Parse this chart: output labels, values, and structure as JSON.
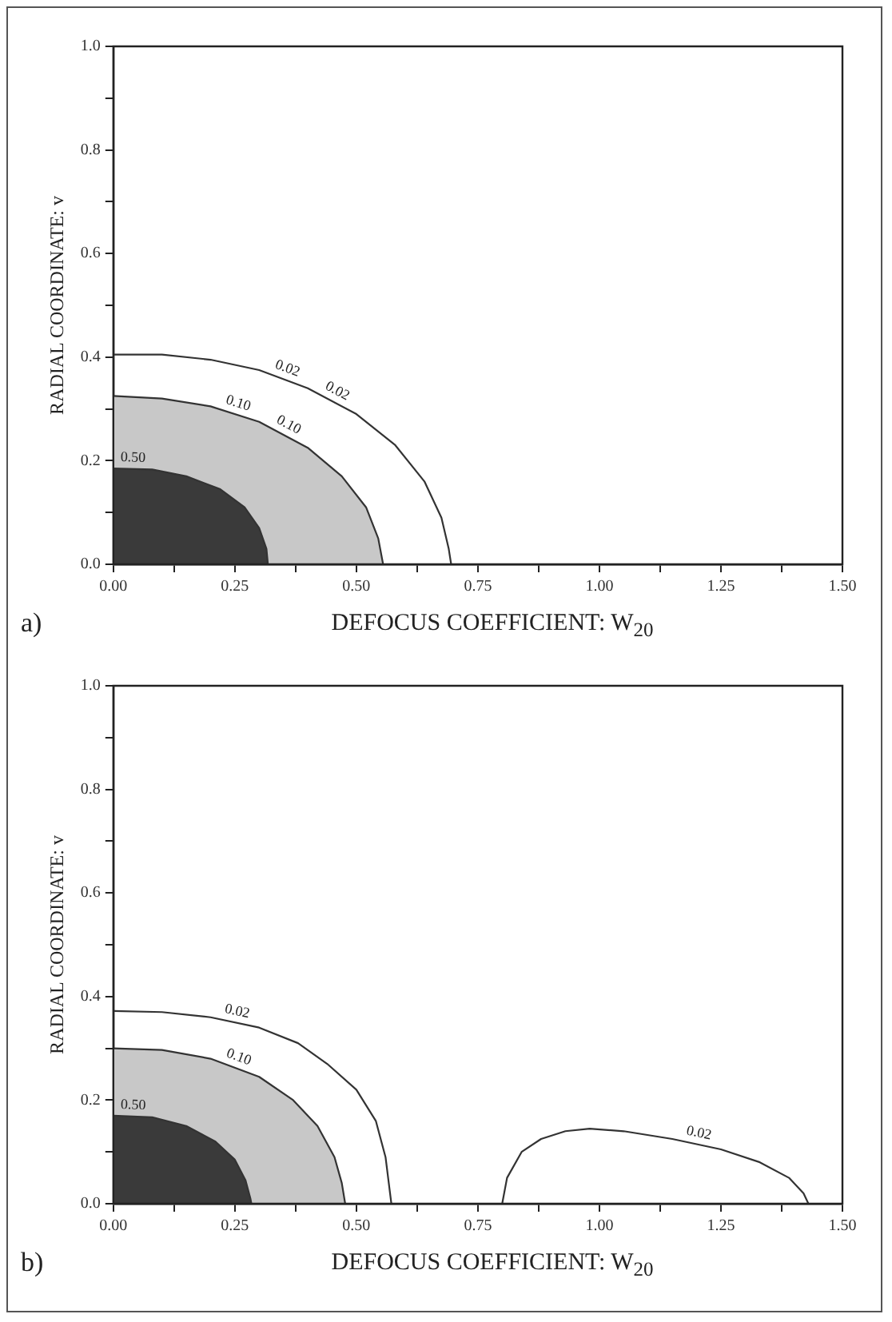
{
  "chart_data": [
    {
      "type": "line",
      "xlabel": "DEFOCUS COEFFICIENT: W$_{20}$",
      "ylabel": "RADIAL COORDINATE: v",
      "annotations": [
        "a)"
      ],
      "xlim": [
        0,
        1.5
      ],
      "ylim": [
        0,
        1.0
      ],
      "xticks": [
        {
          "value": 0,
          "label": "0.00"
        },
        {
          "value": 0.125,
          "label": null
        },
        {
          "value": 0.25,
          "label": "0.25"
        },
        {
          "value": 0.375,
          "label": null
        },
        {
          "value": 0.5,
          "label": "0.50"
        },
        {
          "value": 0.625,
          "label": null
        },
        {
          "value": 0.75,
          "label": "0.75"
        },
        {
          "value": 0.875,
          "label": null
        },
        {
          "value": 1,
          "label": "1.00"
        },
        {
          "value": 1.125,
          "label": null
        },
        {
          "value": 1.25,
          "label": "1.25"
        },
        {
          "value": 1.375,
          "label": null
        },
        {
          "value": 1.5,
          "label": "1.50"
        }
      ],
      "yticks": [
        {
          "value": 0,
          "label": "0.0"
        },
        {
          "value": 0.1,
          "label": null
        },
        {
          "value": 0.2,
          "label": "0.2"
        },
        {
          "value": 0.3,
          "label": null
        },
        {
          "value": 0.4,
          "label": "0.4"
        },
        {
          "value": 0.5,
          "label": null
        },
        {
          "value": 0.6,
          "label": "0.6"
        },
        {
          "value": 0.7,
          "label": null
        },
        {
          "value": 0.8,
          "label": "0.8"
        },
        {
          "value": 0.9,
          "label": null
        },
        {
          "value": 1,
          "label": "1.0"
        }
      ],
      "grid": false,
      "legend": false,
      "marker": "none",
      "line_style": "solid",
      "series": [
        {
          "name": "0.02",
          "type": "line",
          "color": "#333333",
          "x": [
            0,
            0.1,
            0.2,
            0.3,
            0.4,
            0.5,
            0.58,
            0.64,
            0.675,
            0.69,
            0.695
          ],
          "values": [
            0.405,
            0.405,
            0.395,
            0.375,
            0.34,
            0.29,
            0.23,
            0.16,
            0.09,
            0.03,
            0
          ]
        },
        {
          "name": "0.10",
          "type": "area",
          "color": "#c8c8c8",
          "x": [
            0,
            0.1,
            0.2,
            0.3,
            0.4,
            0.47,
            0.52,
            0.545,
            0.555
          ],
          "values": [
            0.325,
            0.32,
            0.305,
            0.275,
            0.225,
            0.17,
            0.11,
            0.05,
            0
          ]
        },
        {
          "name": "0.50",
          "type": "area",
          "color": "#3a3a3a",
          "x": [
            0,
            0.08,
            0.15,
            0.22,
            0.27,
            0.3,
            0.315,
            0.318
          ],
          "values": [
            0.185,
            0.183,
            0.17,
            0.145,
            0.11,
            0.07,
            0.03,
            0
          ]
        }
      ]
    },
    {
      "type": "line",
      "xlabel": "DEFOCUS COEFFICIENT: W$_{20}$",
      "ylabel": "RADIAL COORDINATE: v",
      "annotations": [
        "b)"
      ],
      "xlim": [
        0,
        1.5
      ],
      "ylim": [
        0,
        1.0
      ],
      "xticks": [
        {
          "value": 0,
          "label": "0.00"
        },
        {
          "value": 0.125,
          "label": null
        },
        {
          "value": 0.25,
          "label": "0.25"
        },
        {
          "value": 0.375,
          "label": null
        },
        {
          "value": 0.5,
          "label": "0.50"
        },
        {
          "value": 0.625,
          "label": null
        },
        {
          "value": 0.75,
          "label": "0.75"
        },
        {
          "value": 0.875,
          "label": null
        },
        {
          "value": 1,
          "label": "1.00"
        },
        {
          "value": 1.125,
          "label": null
        },
        {
          "value": 1.25,
          "label": "1.25"
        },
        {
          "value": 1.375,
          "label": null
        },
        {
          "value": 1.5,
          "label": "1.50"
        }
      ],
      "yticks": [
        {
          "value": 0,
          "label": "0.0"
        },
        {
          "value": 0.1,
          "label": null
        },
        {
          "value": 0.2,
          "label": "0.2"
        },
        {
          "value": 0.3,
          "label": null
        },
        {
          "value": 0.4,
          "label": "0.4"
        },
        {
          "value": 0.5,
          "label": null
        },
        {
          "value": 0.6,
          "label": "0.6"
        },
        {
          "value": 0.7,
          "label": null
        },
        {
          "value": 0.8,
          "label": "0.8"
        },
        {
          "value": 0.9,
          "label": null
        },
        {
          "value": 1,
          "label": "1.0"
        }
      ],
      "grid": false,
      "legend": false,
      "marker": "none",
      "line_style": "solid",
      "series": [
        {
          "name": "0.02",
          "type": "line",
          "color": "#333333",
          "x": [
            0,
            0.1,
            0.2,
            0.3,
            0.38,
            0.44,
            0.5,
            0.54,
            0.56,
            0.568,
            0.572
          ],
          "values": [
            0.372,
            0.37,
            0.36,
            0.34,
            0.31,
            0.27,
            0.22,
            0.16,
            0.09,
            0.03,
            0
          ]
        },
        {
          "name": "0.10",
          "type": "area",
          "color": "#c8c8c8",
          "x": [
            0,
            0.1,
            0.2,
            0.3,
            0.37,
            0.42,
            0.455,
            0.47,
            0.477
          ],
          "values": [
            0.3,
            0.297,
            0.28,
            0.245,
            0.2,
            0.15,
            0.09,
            0.04,
            0
          ]
        },
        {
          "name": "0.50",
          "type": "area",
          "color": "#3a3a3a",
          "x": [
            0,
            0.08,
            0.15,
            0.21,
            0.25,
            0.272,
            0.282,
            0.284
          ],
          "values": [
            0.17,
            0.167,
            0.15,
            0.12,
            0.085,
            0.045,
            0.01,
            0
          ]
        },
        {
          "name": "0.02",
          "type": "line",
          "color": "#333333",
          "x": [
            0.8,
            0.81,
            0.84,
            0.88,
            0.93,
            0.98,
            1.05,
            1.15,
            1.25,
            1.33,
            1.39,
            1.42,
            1.43
          ],
          "values": [
            0,
            0.05,
            0.1,
            0.125,
            0.14,
            0.145,
            0.14,
            0.125,
            0.105,
            0.08,
            0.05,
            0.02,
            0
          ]
        }
      ]
    }
  ]
}
